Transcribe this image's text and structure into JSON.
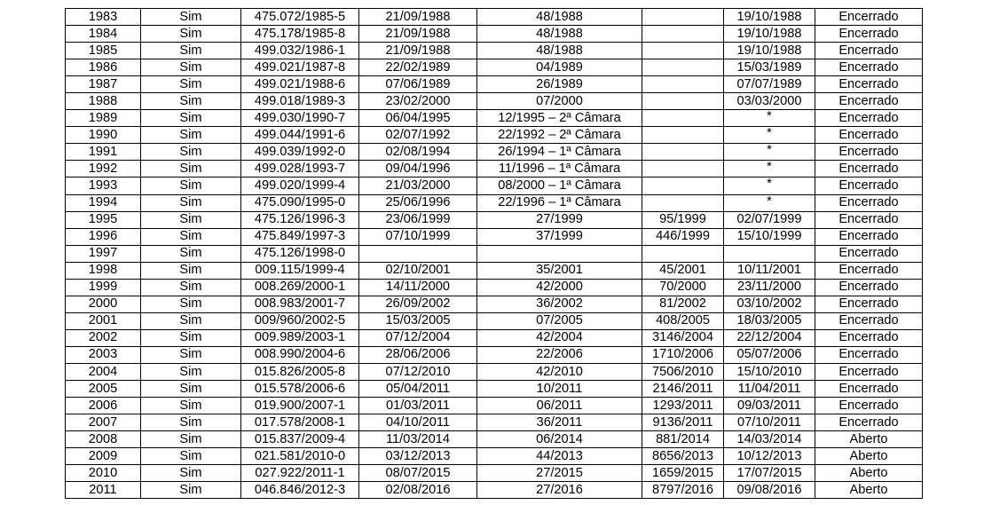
{
  "rows": [
    [
      "1983",
      "Sim",
      "475.072/1985-5",
      "21/09/1988",
      "48/1988",
      "",
      "19/10/1988",
      "Encerrado"
    ],
    [
      "1984",
      "Sim",
      "475.178/1985-8",
      "21/09/1988",
      "48/1988",
      "",
      "19/10/1988",
      "Encerrado"
    ],
    [
      "1985",
      "Sim",
      "499.032/1986-1",
      "21/09/1988",
      "48/1988",
      "",
      "19/10/1988",
      "Encerrado"
    ],
    [
      "1986",
      "Sim",
      "499.021/1987-8",
      "22/02/1989",
      "04/1989",
      "",
      "15/03/1989",
      "Encerrado"
    ],
    [
      "1987",
      "Sim",
      "499.021/1988-6",
      "07/06/1989",
      "26/1989",
      "",
      "07/07/1989",
      "Encerrado"
    ],
    [
      "1988",
      "Sim",
      "499.018/1989-3",
      "23/02/2000",
      "07/2000",
      "",
      "03/03/2000",
      "Encerrado"
    ],
    [
      "1989",
      "Sim",
      "499.030/1990-7",
      "06/04/1995",
      "12/1995 – 2ª Câmara",
      "",
      "*",
      "Encerrado"
    ],
    [
      "1990",
      "Sim",
      "499.044/1991-6",
      "02/07/1992",
      "22/1992 – 2ª Câmara",
      "",
      "*",
      "Encerrado"
    ],
    [
      "1991",
      "Sim",
      "499.039/1992-0",
      "02/08/1994",
      "26/1994 – 1ª Câmara",
      "",
      "*",
      "Encerrado"
    ],
    [
      "1992",
      "Sim",
      "499.028/1993-7",
      "09/04/1996",
      "11/1996 – 1ª Câmara",
      "",
      "*",
      "Encerrado"
    ],
    [
      "1993",
      "Sim",
      "499.020/1999-4",
      "21/03/2000",
      "08/2000 – 1ª Câmara",
      "",
      "*",
      "Encerrado"
    ],
    [
      "1994",
      "Sim",
      "475.090/1995-0",
      "25/06/1996",
      "22/1996 – 1ª Câmara",
      "",
      "*",
      "Encerrado"
    ],
    [
      "1995",
      "Sim",
      "475.126/1996-3",
      "23/06/1999",
      "27/1999",
      "95/1999",
      "02/07/1999",
      "Encerrado"
    ],
    [
      "1996",
      "Sim",
      "475.849/1997-3",
      "07/10/1999",
      "37/1999",
      "446/1999",
      "15/10/1999",
      "Encerrado"
    ],
    [
      "1997",
      "Sim",
      "475.126/1998-0",
      "",
      "",
      "",
      "",
      "Encerrado"
    ],
    [
      "1998",
      "Sim",
      "009.115/1999-4",
      "02/10/2001",
      "35/2001",
      "45/2001",
      "10/11/2001",
      "Encerrado"
    ],
    [
      "1999",
      "Sim",
      "008.269/2000-1",
      "14/11/2000",
      "42/2000",
      "70/2000",
      "23/11/2000",
      "Encerrado"
    ],
    [
      "2000",
      "Sim",
      "008.983/2001-7",
      "26/09/2002",
      "36/2002",
      "81/2002",
      "03/10/2002",
      "Encerrado"
    ],
    [
      "2001",
      "Sim",
      "009/960/2002-5",
      "15/03/2005",
      "07/2005",
      "408/2005",
      "18/03/2005",
      "Encerrado"
    ],
    [
      "2002",
      "Sim",
      "009.989/2003-1",
      "07/12/2004",
      "42/2004",
      "3146/2004",
      "22/12/2004",
      "Encerrado"
    ],
    [
      "2003",
      "Sim",
      "008.990/2004-6",
      "28/06/2006",
      "22/2006",
      "1710/2006",
      "05/07/2006",
      "Encerrado"
    ],
    [
      "2004",
      "Sim",
      "015.826/2005-8",
      "07/12/2010",
      "42/2010",
      "7506/2010",
      "15/10/2010",
      "Encerrado"
    ],
    [
      "2005",
      "Sim",
      "015.578/2006-6",
      "05/04/2011",
      "10/2011",
      "2146/2011",
      "11/04/2011",
      "Encerrado"
    ],
    [
      "2006",
      "Sim",
      "019.900/2007-1",
      "01/03/2011",
      "06/2011",
      "1293/2011",
      "09/03/2011",
      "Encerrado"
    ],
    [
      "2007",
      "Sim",
      "017.578/2008-1",
      "04/10/2011",
      "36/2011",
      "9136/2011",
      "07/10/2011",
      "Encerrado"
    ],
    [
      "2008",
      "Sim",
      "015.837/2009-4",
      "11/03/2014",
      "06/2014",
      "881/2014",
      "14/03/2014",
      "Aberto"
    ],
    [
      "2009",
      "Sim",
      "021.581/2010-0",
      "03/12/2013",
      "44/2013",
      "8656/2013",
      "10/12/2013",
      "Aberto"
    ],
    [
      "2010",
      "Sim",
      "027.922/2011-1",
      "08/07/2015",
      "27/2015",
      "1659/2015",
      "17/07/2015",
      "Aberto"
    ],
    [
      "2011",
      "Sim",
      "046.846/2012-3",
      "02/08/2016",
      "27/2016",
      "8797/2016",
      "09/08/2016",
      "Aberto"
    ]
  ]
}
